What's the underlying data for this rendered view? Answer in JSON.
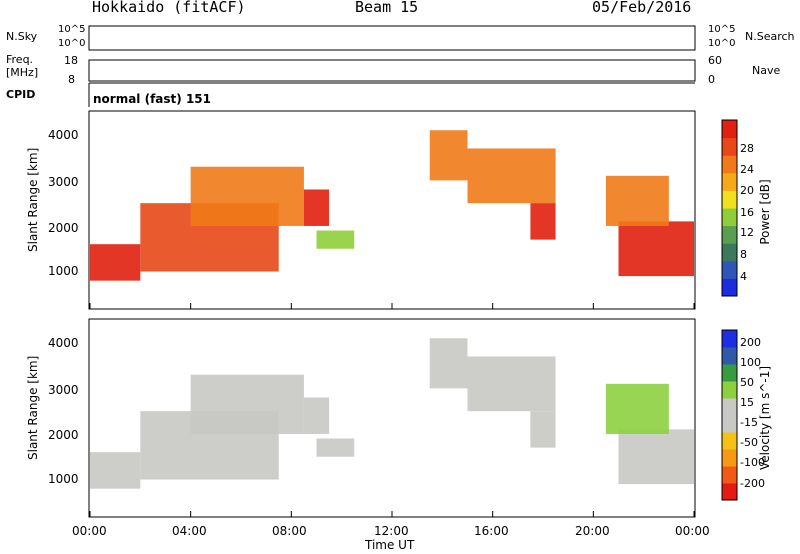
{
  "header": {
    "station": "Hokkaido (fitACF)",
    "beam": "Beam 15",
    "date": "05/Feb/2016"
  },
  "noise_panel": {
    "left_label": "N.Sky",
    "right_label": "N.Search",
    "left_top_tick": "10^5",
    "left_bottom_tick": "10^0",
    "right_top_tick": "10^5",
    "right_bottom_tick": "10^0"
  },
  "freq_panel": {
    "left_label_1": "Freq.",
    "left_label_2": "[MHz]",
    "right_label": "Nave",
    "left_top_tick": "18",
    "left_bottom_tick": "8",
    "right_top_tick": "60",
    "right_bottom_tick": "0"
  },
  "cpid": {
    "label": "CPID",
    "value": "normal (fast) 151"
  },
  "colors": {
    "power": [
      "#1a2ee0",
      "#2e55b8",
      "#3a7a5a",
      "#5a9e50",
      "#8fce3a",
      "#f0e020",
      "#f5a818",
      "#f07a18",
      "#e84818",
      "#e02010"
    ],
    "velocity": [
      "#e51a12",
      "#f05a16",
      "#f59a14",
      "#f5c018",
      "#c8c8c4",
      "#c8c8c4",
      "#8cd040",
      "#3a9a40",
      "#2e5aa8",
      "#1e2ee0"
    ]
  },
  "chart_data": [
    {
      "type": "heatmap",
      "title": "",
      "xlabel": "",
      "ylabel": "Slant Range [km]",
      "colorbar_label": "Power [dB]",
      "colorbar_ticks": [
        "4",
        "8",
        "12",
        "16",
        "20",
        "24",
        "28"
      ],
      "xlim": [
        0,
        24
      ],
      "ylim": [
        200,
        4500
      ],
      "y_ticks": [
        "1000",
        "2000",
        "3000",
        "4000"
      ],
      "regions": [
        {
          "t0": 0.0,
          "t1": 2.0,
          "r0": 800,
          "r1": 1600,
          "value": 26
        },
        {
          "t0": 2.0,
          "t1": 7.5,
          "r0": 1000,
          "r1": 2500,
          "value": 24
        },
        {
          "t0": 4.0,
          "t1": 8.5,
          "r0": 2000,
          "r1": 3300,
          "value": 22
        },
        {
          "t0": 8.5,
          "t1": 9.5,
          "r0": 2000,
          "r1": 2800,
          "value": 26
        },
        {
          "t0": 9.0,
          "t1": 10.5,
          "r0": 1500,
          "r1": 1900,
          "value": 12
        },
        {
          "t0": 13.5,
          "t1": 15.0,
          "r0": 3000,
          "r1": 4100,
          "value": 20
        },
        {
          "t0": 15.0,
          "t1": 18.5,
          "r0": 2500,
          "r1": 3700,
          "value": 22
        },
        {
          "t0": 17.5,
          "t1": 18.5,
          "r0": 1700,
          "r1": 2500,
          "value": 26
        },
        {
          "t0": 21.0,
          "t1": 24.0,
          "r0": 900,
          "r1": 2100,
          "value": 26
        },
        {
          "t0": 20.5,
          "t1": 23.0,
          "r0": 2000,
          "r1": 3100,
          "value": 22
        }
      ]
    },
    {
      "type": "heatmap",
      "title": "",
      "xlabel": "Time UT",
      "ylabel": "Slant Range [km]",
      "colorbar_label": "Velocity [m s^-1]",
      "colorbar_ticks": [
        "-200",
        "-100",
        "-50",
        "-15",
        "15",
        "50",
        "100",
        "200"
      ],
      "xlim": [
        0,
        24
      ],
      "ylim": [
        200,
        4500
      ],
      "y_ticks": [
        "1000",
        "2000",
        "3000",
        "4000"
      ],
      "x_ticks": [
        "00:00",
        "04:00",
        "08:00",
        "12:00",
        "16:00",
        "20:00",
        "00:00"
      ],
      "regions": [
        {
          "t0": 0.0,
          "t1": 2.0,
          "r0": 800,
          "r1": 1600,
          "value": 0
        },
        {
          "t0": 2.0,
          "t1": 7.5,
          "r0": 1000,
          "r1": 2500,
          "value": 0
        },
        {
          "t0": 4.0,
          "t1": 8.5,
          "r0": 2000,
          "r1": 3300,
          "value": 0
        },
        {
          "t0": 8.5,
          "t1": 9.5,
          "r0": 2000,
          "r1": 2800,
          "value": 0
        },
        {
          "t0": 9.0,
          "t1": 10.5,
          "r0": 1500,
          "r1": 1900,
          "value": 0
        },
        {
          "t0": 13.5,
          "t1": 15.0,
          "r0": 3000,
          "r1": 4100,
          "value": 0
        },
        {
          "t0": 15.0,
          "t1": 18.5,
          "r0": 2500,
          "r1": 3700,
          "value": 0
        },
        {
          "t0": 17.5,
          "t1": 18.5,
          "r0": 1700,
          "r1": 2500,
          "value": 0
        },
        {
          "t0": 21.0,
          "t1": 24.0,
          "r0": 900,
          "r1": 2100,
          "value": 0
        },
        {
          "t0": 20.5,
          "t1": 23.0,
          "r0": 2000,
          "r1": 3100,
          "value": 20
        }
      ]
    }
  ]
}
